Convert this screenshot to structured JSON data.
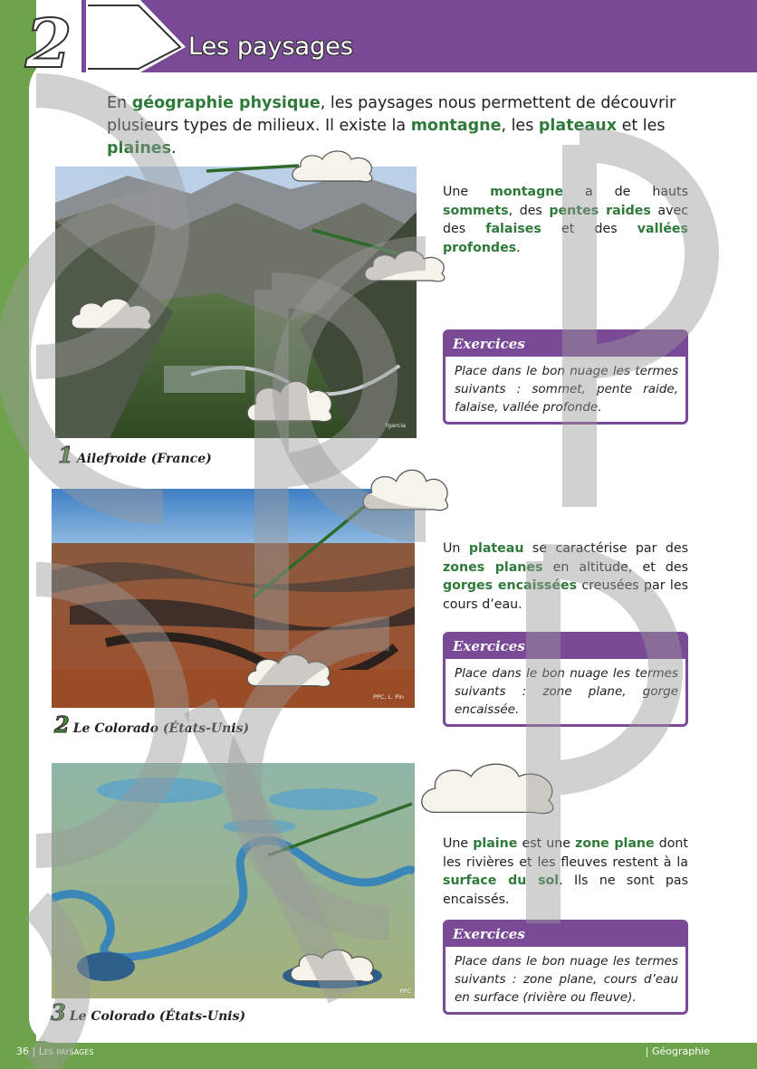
{
  "header": {
    "chapter_number": "2",
    "title": "Les paysages"
  },
  "intro": {
    "t1": "En ",
    "k1": "géographie physique",
    "t2": ", les paysages nous permettent de découvrir plusieurs types de milieux. Il existe la ",
    "k2": "montagne",
    "t3": ", les ",
    "k3": "plateaux",
    "t4": " et les ",
    "k4": "plaines",
    "t5": "."
  },
  "sections": [
    {
      "caption_num": "1",
      "caption": "Ailefroide (France)",
      "credit": "fgarcia",
      "desc": {
        "t1": "Une ",
        "k1": "montagne",
        "t2": " a de hauts ",
        "k2": "sommets",
        "t3": ", des ",
        "k3": "pentes raides",
        "t4": " avec des ",
        "k4": "falaises",
        "t5": " et des ",
        "k5": "vallées profondes",
        "t6": "."
      },
      "exercise_title": "Exercices",
      "exercise_text": "Place dans le bon nuage les termes suivants : sommet, pente raide, falaise, vallée profonde."
    },
    {
      "caption_num": "2",
      "caption": "Le Colorado (États-Unis)",
      "credit": "PPC, L. Pin",
      "desc": {
        "t1": "Un ",
        "k1": "plateau",
        "t2": " se caractérise par des ",
        "k2": "zones planes",
        "t3": " en altitude, et des ",
        "k3": "gorges encaissées",
        "t4": " creusées par les cours d’eau."
      },
      "exercise_title": "Exercices",
      "exercise_text": "Place dans le bon nuage les termes suivants : zone plane, gorge encaissée."
    },
    {
      "caption_num": "3",
      "caption": "Le Colorado (États-Unis)",
      "credit": "PPC",
      "desc": {
        "t1": "Une ",
        "k1": "plaine",
        "t2": " est une ",
        "k2": "zone plane",
        "t3": " dont les rivières et les fleuves restent à la ",
        "k3": "surface du sol",
        "t4": ". Ils ne sont pas encaissés."
      },
      "exercise_title": "Exercices",
      "exercise_text": "Place dans le bon nuage les termes suivants : zone plane, cours d’eau en surface (rivière ou fleuve)."
    }
  ],
  "footer": {
    "page_number": "36",
    "separator": "|",
    "section": "Les paysages",
    "subject": "| Géographie"
  },
  "colors": {
    "purple": "#7a4a97",
    "green": "#6da34a",
    "keyword_green": "#2f7a3a"
  },
  "icons": [
    "cloud-icon",
    "leader-line"
  ]
}
